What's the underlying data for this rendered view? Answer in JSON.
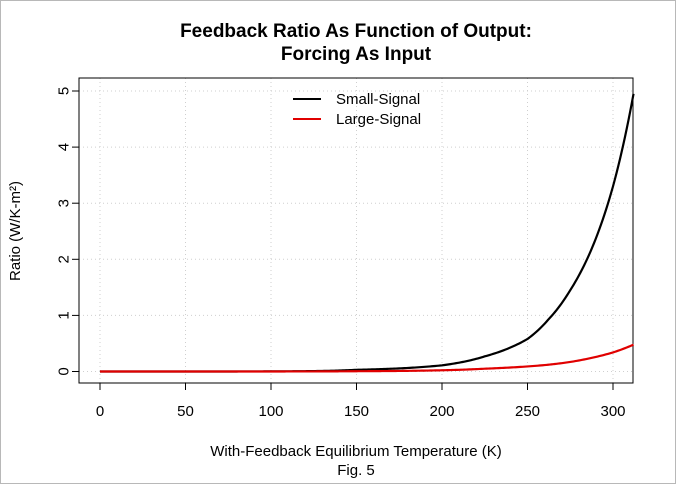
{
  "chart_data": {
    "type": "line",
    "title": [
      "Feedback Ratio As Function of Output:",
      "Forcing As Input"
    ],
    "xlabel": "With-Feedback Equilibrium Temperature (K)",
    "ylabel": "Ratio (W/K-m²)",
    "caption": "Fig. 5",
    "xlim": [
      0,
      312
    ],
    "ylim": [
      0,
      5
    ],
    "x_ticks": [
      0,
      50,
      100,
      150,
      200,
      250,
      300
    ],
    "y_ticks": [
      0,
      1,
      2,
      3,
      4,
      5
    ],
    "grid": true,
    "legend_position": "top-center",
    "x": [
      0,
      50,
      100,
      150,
      175,
      200,
      225,
      250,
      262,
      275,
      287,
      300,
      312
    ],
    "series": [
      {
        "name": "Small-Signal",
        "color": "#000000",
        "values": [
          0,
          0.0001,
          0.002,
          0.03,
          0.055,
          0.11,
          0.27,
          0.58,
          0.92,
          1.45,
          2.15,
          3.3,
          4.95
        ]
      },
      {
        "name": "Large-Signal",
        "color": "#e00000",
        "values": [
          0,
          1e-05,
          0.0004,
          0.005,
          0.01,
          0.022,
          0.05,
          0.09,
          0.12,
          0.17,
          0.24,
          0.34,
          0.48
        ]
      }
    ]
  }
}
